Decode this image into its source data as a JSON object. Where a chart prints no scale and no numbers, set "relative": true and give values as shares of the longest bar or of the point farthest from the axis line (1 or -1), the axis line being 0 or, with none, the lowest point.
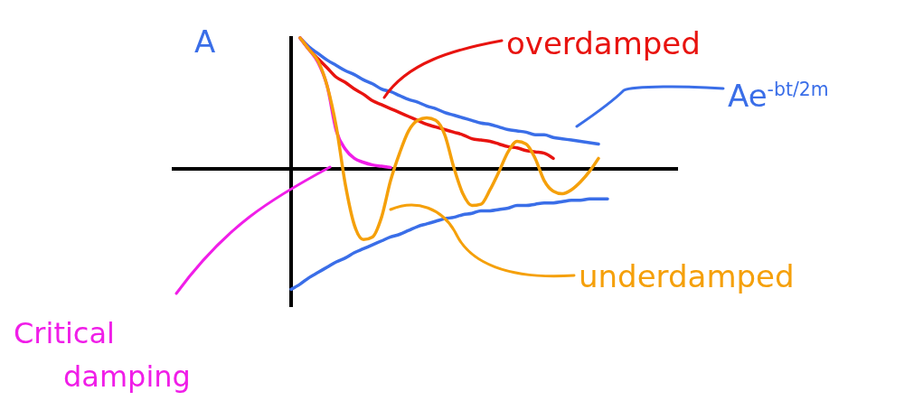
{
  "chart_data": {
    "type": "line",
    "relative": true,
    "categories": [
      null,
      null,
      null,
      null,
      null,
      null,
      null,
      null,
      null,
      null,
      null,
      null,
      null,
      null,
      null,
      null,
      null,
      null,
      null,
      null,
      null,
      null,
      null,
      null,
      null,
      null,
      null,
      null,
      null,
      null,
      null,
      null,
      null,
      null,
      null,
      null
    ],
    "series": [
      {
        "name": "Ae$^{-bt/2m}$",
        "color": "#3a6ee8",
        "values": [
          null,
          1.0,
          0.93,
          0.88,
          0.83,
          0.79,
          0.75,
          0.72,
          0.68,
          0.65,
          0.61,
          0.59,
          0.56,
          0.53,
          0.51,
          0.48,
          0.46,
          0.43,
          0.41,
          0.39,
          0.37,
          0.35,
          0.34,
          0.32,
          0.3,
          0.29,
          0.28,
          0.26,
          0.26,
          0.24,
          0.23,
          0.22,
          0.21,
          0.2,
          0.19,
          null
        ]
      },
      {
        "color": "#3a6ee8",
        "values": [
          -0.92,
          -0.88,
          -0.83,
          -0.79,
          -0.75,
          -0.71,
          -0.68,
          -0.64,
          -0.61,
          -0.58,
          -0.55,
          -0.52,
          -0.5,
          -0.47,
          -0.44,
          -0.42,
          -0.4,
          -0.38,
          -0.37,
          -0.35,
          -0.34,
          -0.32,
          -0.32,
          -0.31,
          -0.3,
          -0.28,
          -0.28,
          -0.27,
          -0.26,
          -0.26,
          -0.25,
          -0.24,
          -0.24,
          -0.23,
          -0.23,
          -0.23
        ]
      },
      {
        "name": "overdamped",
        "color": "#e8130f",
        "values": [
          null,
          1.0,
          0.91,
          0.84,
          0.77,
          0.7,
          0.66,
          0.61,
          0.57,
          0.52,
          0.49,
          0.46,
          0.43,
          0.4,
          0.37,
          0.34,
          0.32,
          0.3,
          0.28,
          0.26,
          0.23,
          0.22,
          0.21,
          0.19,
          0.17,
          0.16,
          0.14,
          0.13,
          0.12,
          0.08,
          null,
          null,
          null,
          null,
          null,
          null
        ]
      },
      {
        "name": "Critical damping",
        "color": "#f01ee8",
        "values": [
          null,
          1.0,
          0.91,
          0.81,
          0.63,
          0.29,
          0.15,
          0.08,
          0.05,
          0.03,
          0.02,
          0.01,
          null,
          null,
          null,
          null,
          null,
          null,
          null,
          null,
          null,
          null,
          null,
          null,
          null,
          null,
          null,
          null,
          null,
          null,
          null,
          null,
          null,
          null,
          null,
          null
        ]
      },
      {
        "name": "underdamped",
        "color": "#f5a00a",
        "values": [
          null,
          1.0,
          0.91,
          0.82,
          0.63,
          0.32,
          -0.12,
          -0.43,
          -0.54,
          -0.52,
          -0.37,
          -0.09,
          0.12,
          0.29,
          0.37,
          0.39,
          0.37,
          0.26,
          0.01,
          -0.19,
          -0.28,
          -0.27,
          -0.16,
          -0.02,
          0.13,
          0.21,
          0.19,
          0.08,
          -0.09,
          -0.17,
          -0.19,
          -0.16,
          -0.1,
          -0.02,
          0.08,
          null
        ]
      }
    ],
    "annotations": [
      "A"
    ],
    "line_style": "solid",
    "marker": "none"
  }
}
